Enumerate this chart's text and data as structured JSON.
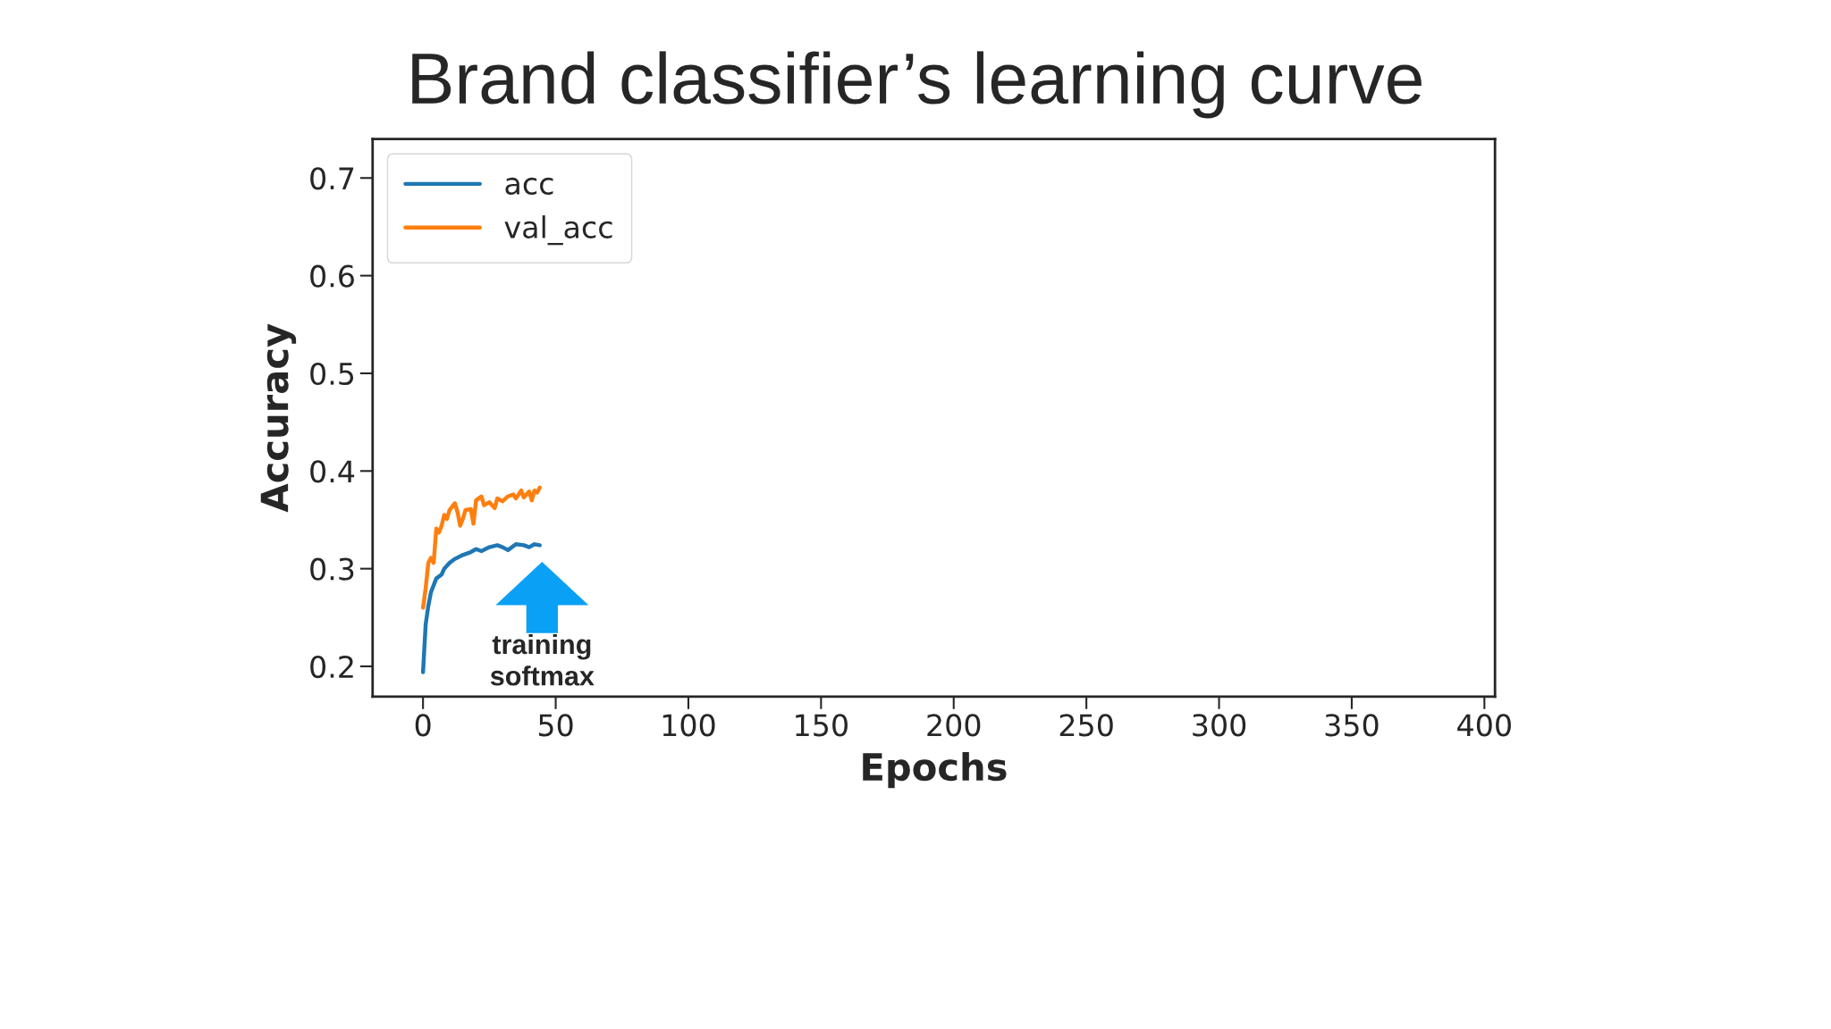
{
  "chart_data": {
    "type": "line",
    "title": "Brand classifier’s learning curve",
    "xlabel": "Epochs",
    "ylabel": "Accuracy",
    "xlim": [
      -19,
      404
    ],
    "ylim": [
      0.169,
      0.74
    ],
    "xticks": [
      0,
      50,
      100,
      150,
      200,
      250,
      300,
      350,
      400
    ],
    "yticks": [
      0.2,
      0.3,
      0.4,
      0.5,
      0.6,
      0.7
    ],
    "grid": false,
    "legend": "top left",
    "annotations": [
      "training\nsoftmax"
    ],
    "series": [
      {
        "name": "acc",
        "color": "#1f77b4",
        "x": [
          0,
          1,
          2,
          3,
          5,
          7,
          8,
          10,
          12,
          15,
          18,
          20,
          22,
          25,
          28,
          30,
          32,
          35,
          38,
          40,
          42,
          44
        ],
        "values": [
          0.194,
          0.243,
          0.262,
          0.276,
          0.29,
          0.294,
          0.3,
          0.306,
          0.31,
          0.314,
          0.317,
          0.32,
          0.318,
          0.322,
          0.324,
          0.322,
          0.319,
          0.325,
          0.324,
          0.322,
          0.325,
          0.324
        ]
      },
      {
        "name": "val_acc",
        "color": "#ff7f0e",
        "x": [
          0,
          1,
          2,
          3,
          4,
          5,
          6,
          7,
          8,
          9,
          10,
          12,
          13,
          14,
          15,
          16,
          18,
          19,
          20,
          22,
          23,
          25,
          27,
          28,
          30,
          32,
          34,
          35,
          37,
          38,
          40,
          41,
          42,
          43,
          44
        ],
        "values": [
          0.26,
          0.28,
          0.306,
          0.311,
          0.306,
          0.341,
          0.337,
          0.344,
          0.355,
          0.351,
          0.36,
          0.367,
          0.358,
          0.344,
          0.351,
          0.36,
          0.361,
          0.346,
          0.37,
          0.374,
          0.365,
          0.368,
          0.362,
          0.372,
          0.369,
          0.374,
          0.376,
          0.372,
          0.38,
          0.373,
          0.379,
          0.37,
          0.38,
          0.378,
          0.383
        ]
      }
    ]
  }
}
